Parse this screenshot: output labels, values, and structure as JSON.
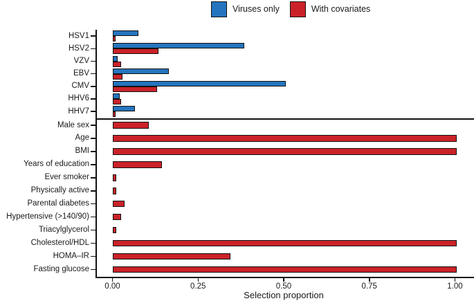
{
  "legend": {
    "items": [
      {
        "label": "Viruses only",
        "color": "#2575be"
      },
      {
        "label": "With covariates",
        "color": "#cb2229"
      }
    ]
  },
  "chart_data": {
    "type": "bar",
    "orientation": "horizontal",
    "title": "",
    "xlabel": "Selection proportion",
    "xlim": [
      0,
      1
    ],
    "x_ticks": [
      0,
      0.25,
      0.5,
      0.75,
      1
    ],
    "x_tick_labels": [
      "0.00",
      "0.25",
      "0.50",
      "0.75",
      "1.00"
    ],
    "legend_position": "top-center",
    "grid": false,
    "groups": [
      {
        "name": "viruses",
        "categories": [
          "HSV1",
          "HSV2",
          "VZV",
          "EBV",
          "CMV",
          "HHV6",
          "HHV7"
        ],
        "series": [
          {
            "name": "Viruses only",
            "color": "#2575be",
            "values": [
              0.07,
              0.38,
              0.01,
              0.16,
              0.5,
              0.015,
              0.06
            ]
          },
          {
            "name": "With covariates",
            "color": "#cb2229",
            "values": [
              0.003,
              0.13,
              0.02,
              0.025,
              0.125,
              0.02,
              0.003
            ]
          }
        ]
      },
      {
        "name": "covariates",
        "categories": [
          "Male sex",
          "Age",
          "BMI",
          "Years of education",
          "Ever smoker",
          "Physically active",
          "Parental diabetes",
          "Hypertensive (>140/90)",
          "Triacylglycerol",
          "Cholesterol/HDL",
          "HOMA–IR",
          "Fasting glucose"
        ],
        "series": [
          {
            "name": "With covariates",
            "color": "#cb2229",
            "values": [
              0.1,
              1.0,
              1.0,
              0.14,
              0.005,
              0.005,
              0.03,
              0.02,
              0.005,
              1.0,
              0.34,
              1.0
            ]
          }
        ]
      }
    ]
  }
}
